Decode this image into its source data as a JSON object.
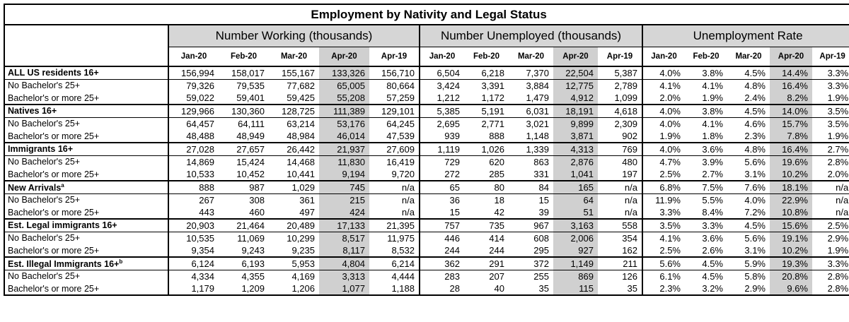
{
  "chart_data": {
    "type": "table",
    "title": "Employment by Nativity and Legal Status",
    "groups": [
      "Number Working (thousands)",
      "Number Unemployed (thousands)",
      "Unemployment Rate"
    ],
    "months": [
      "Jan-20",
      "Feb-20",
      "Mar-20",
      "Apr-20",
      "Apr-19"
    ],
    "rows": [
      {
        "label": "ALL US residents 16+",
        "sup": "",
        "bold": true,
        "working": [
          "156,994",
          "158,017",
          "155,167",
          "133,326",
          "156,710"
        ],
        "unemployed": [
          "6,504",
          "6,218",
          "7,370",
          "22,504",
          "5,387"
        ],
        "rate": [
          "4.0%",
          "3.8%",
          "4.5%",
          "14.4%",
          "3.3%"
        ]
      },
      {
        "label": "No Bachelor's 25+",
        "sup": "",
        "bold": false,
        "working": [
          "79,326",
          "79,535",
          "77,682",
          "65,005",
          "80,664"
        ],
        "unemployed": [
          "3,424",
          "3,391",
          "3,884",
          "12,775",
          "2,789"
        ],
        "rate": [
          "4.1%",
          "4.1%",
          "4.8%",
          "16.4%",
          "3.3%"
        ]
      },
      {
        "label": "Bachelor's or more 25+",
        "sup": "",
        "bold": false,
        "working": [
          "59,022",
          "59,401",
          "59,425",
          "55,208",
          "57,259"
        ],
        "unemployed": [
          "1,212",
          "1,172",
          "1,479",
          "4,912",
          "1,099"
        ],
        "rate": [
          "2.0%",
          "1.9%",
          "2.4%",
          "8.2%",
          "1.9%"
        ]
      },
      {
        "label": "Natives 16+",
        "sup": "",
        "bold": true,
        "working": [
          "129,966",
          "130,360",
          "128,725",
          "111,389",
          "129,101"
        ],
        "unemployed": [
          "5,385",
          "5,191",
          "6,031",
          "18,191",
          "4,618"
        ],
        "rate": [
          "4.0%",
          "3.8%",
          "4.5%",
          "14.0%",
          "3.5%"
        ]
      },
      {
        "label": "No Bachelor's 25+",
        "sup": "",
        "bold": false,
        "working": [
          "64,457",
          "64,111",
          "63,214",
          "53,176",
          "64,245"
        ],
        "unemployed": [
          "2,695",
          "2,771",
          "3,021",
          "9,899",
          "2,309"
        ],
        "rate": [
          "4.0%",
          "4.1%",
          "4.6%",
          "15.7%",
          "3.5%"
        ]
      },
      {
        "label": "Bachelor's or more 25+",
        "sup": "",
        "bold": false,
        "working": [
          "48,488",
          "48,949",
          "48,984",
          "46,014",
          "47,539"
        ],
        "unemployed": [
          "939",
          "888",
          "1,148",
          "3,871",
          "902"
        ],
        "rate": [
          "1.9%",
          "1.8%",
          "2.3%",
          "7.8%",
          "1.9%"
        ]
      },
      {
        "label": "Immigrants 16+",
        "sup": "",
        "bold": true,
        "working": [
          "27,028",
          "27,657",
          "26,442",
          "21,937",
          "27,609"
        ],
        "unemployed": [
          "1,119",
          "1,026",
          "1,339",
          "4,313",
          "769"
        ],
        "rate": [
          "4.0%",
          "3.6%",
          "4.8%",
          "16.4%",
          "2.7%"
        ]
      },
      {
        "label": "No Bachelor's 25+",
        "sup": "",
        "bold": false,
        "working": [
          "14,869",
          "15,424",
          "14,468",
          "11,830",
          "16,419"
        ],
        "unemployed": [
          "729",
          "620",
          "863",
          "2,876",
          "480"
        ],
        "rate": [
          "4.7%",
          "3.9%",
          "5.6%",
          "19.6%",
          "2.8%"
        ]
      },
      {
        "label": "Bachelor's or more 25+",
        "sup": "",
        "bold": false,
        "working": [
          "10,533",
          "10,452",
          "10,441",
          "9,194",
          "9,720"
        ],
        "unemployed": [
          "272",
          "285",
          "331",
          "1,041",
          "197"
        ],
        "rate": [
          "2.5%",
          "2.7%",
          "3.1%",
          "10.2%",
          "2.0%"
        ]
      },
      {
        "label": "New Arrivals",
        "sup": "a",
        "bold": true,
        "working": [
          "888",
          "987",
          "1,029",
          "745",
          "n/a"
        ],
        "unemployed": [
          "65",
          "80",
          "84",
          "165",
          "n/a"
        ],
        "rate": [
          "6.8%",
          "7.5%",
          "7.6%",
          "18.1%",
          "n/a"
        ]
      },
      {
        "label": "No Bachelor's 25+",
        "sup": "",
        "bold": false,
        "working": [
          "267",
          "308",
          "361",
          "215",
          "n/a"
        ],
        "unemployed": [
          "36",
          "18",
          "15",
          "64",
          "n/a"
        ],
        "rate": [
          "11.9%",
          "5.5%",
          "4.0%",
          "22.9%",
          "n/a"
        ]
      },
      {
        "label": "Bachelor's or more 25+",
        "sup": "",
        "bold": false,
        "working": [
          "443",
          "460",
          "497",
          "424",
          "n/a"
        ],
        "unemployed": [
          "15",
          "42",
          "39",
          "51",
          "n/a"
        ],
        "rate": [
          "3.3%",
          "8.4%",
          "7.2%",
          "10.8%",
          "n/a"
        ]
      },
      {
        "label": "Est. Legal immigrants 16+",
        "sup": "",
        "bold": true,
        "working": [
          "20,903",
          "21,464",
          "20,489",
          "17,133",
          "21,395"
        ],
        "unemployed": [
          "757",
          "735",
          "967",
          "3,163",
          "558"
        ],
        "rate": [
          "3.5%",
          "3.3%",
          "4.5%",
          "15.6%",
          "2.5%"
        ]
      },
      {
        "label": "No Bachelor's 25+",
        "sup": "",
        "bold": false,
        "working": [
          "10,535",
          "11,069",
          "10,299",
          "8,517",
          "11,975"
        ],
        "unemployed": [
          "446",
          "414",
          "608",
          "2,006",
          "354"
        ],
        "rate": [
          "4.1%",
          "3.6%",
          "5.6%",
          "19.1%",
          "2.9%"
        ]
      },
      {
        "label": "Bachelor's or more 25+",
        "sup": "",
        "bold": false,
        "working": [
          "9,354",
          "9,243",
          "9,235",
          "8,117",
          "8,532"
        ],
        "unemployed": [
          "244",
          "244",
          "295",
          "927",
          "162"
        ],
        "rate": [
          "2.5%",
          "2.6%",
          "3.1%",
          "10.2%",
          "1.9%"
        ]
      },
      {
        "label": "Est. Illegal Immigrants 16+",
        "sup": "b",
        "bold": true,
        "working": [
          "6,124",
          "6,193",
          "5,953",
          "4,804",
          "6,214"
        ],
        "unemployed": [
          "362",
          "291",
          "372",
          "1,149",
          "211"
        ],
        "rate": [
          "5.6%",
          "4.5%",
          "5.9%",
          "19.3%",
          "3.3%"
        ]
      },
      {
        "label": "No Bachelor's 25+",
        "sup": "",
        "bold": false,
        "working": [
          "4,334",
          "4,355",
          "4,169",
          "3,313",
          "4,444"
        ],
        "unemployed": [
          "283",
          "207",
          "255",
          "869",
          "126"
        ],
        "rate": [
          "6.1%",
          "4.5%",
          "5.8%",
          "20.8%",
          "2.8%"
        ]
      },
      {
        "label": "Bachelor's or more 25+",
        "sup": "",
        "bold": false,
        "working": [
          "1,179",
          "1,209",
          "1,206",
          "1,077",
          "1,188"
        ],
        "unemployed": [
          "28",
          "40",
          "35",
          "115",
          "35"
        ],
        "rate": [
          "2.3%",
          "3.2%",
          "2.9%",
          "9.6%",
          "2.8%"
        ]
      }
    ]
  }
}
